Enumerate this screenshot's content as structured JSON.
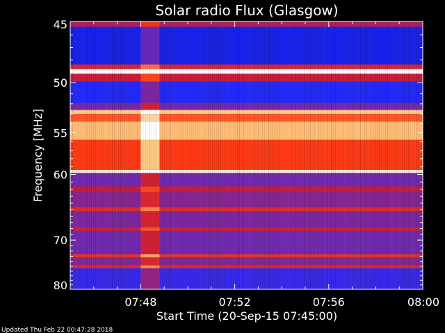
{
  "chart_data": {
    "type": "heatmap",
    "title": "Solar radio Flux (Glasgow)",
    "xlabel": "Start Time (20-Sep-15 07:45:00)",
    "ylabel": "Frequency [MHz]",
    "x_tick_labels": [
      "07:48",
      "07:52",
      "07:56",
      "08:00"
    ],
    "x_ticks_minutes": [
      3,
      7,
      11,
      15
    ],
    "xlim_minutes": [
      0,
      15
    ],
    "y_tick_labels": [
      "45",
      "50",
      "55",
      "60",
      "70",
      "80"
    ],
    "y_ticks": [
      45,
      50,
      55,
      60,
      70,
      80
    ],
    "ylim": [
      45,
      80
    ],
    "y_scale": "reciprocal",
    "colormap": [
      "#00006e",
      "#1f2aff",
      "#6e2ab4",
      "#c81e3c",
      "#ff3c14",
      "#ffc880",
      "#ffffff"
    ],
    "frequency_bands": [
      {
        "freq_range": [
          45.0,
          45.4
        ],
        "level": 0.45
      },
      {
        "freq_range": [
          45.4,
          48.4
        ],
        "level": 0.14
      },
      {
        "freq_range": [
          48.4,
          48.8
        ],
        "level": 0.55
      },
      {
        "freq_range": [
          48.8,
          49.2
        ],
        "level": 1.0
      },
      {
        "freq_range": [
          49.2,
          49.9
        ],
        "level": 0.5
      },
      {
        "freq_range": [
          49.9,
          51.9
        ],
        "level": 0.18
      },
      {
        "freq_range": [
          51.9,
          52.6
        ],
        "level": 0.35
      },
      {
        "freq_range": [
          52.6,
          53.0
        ],
        "level": 0.85
      },
      {
        "freq_range": [
          53.0,
          53.8
        ],
        "level": 0.7
      },
      {
        "freq_range": [
          53.8,
          55.8
        ],
        "level": 0.82
      },
      {
        "freq_range": [
          55.8,
          59.4
        ],
        "level": 0.66
      },
      {
        "freq_range": [
          59.4,
          59.8
        ],
        "level": 0.95
      },
      {
        "freq_range": [
          59.8,
          61.6
        ],
        "level": 0.34
      },
      {
        "freq_range": [
          61.6,
          62.4
        ],
        "level": 0.5
      },
      {
        "freq_range": [
          62.4,
          64.6
        ],
        "level": 0.38
      },
      {
        "freq_range": [
          64.6,
          65.2
        ],
        "level": 0.58
      },
      {
        "freq_range": [
          65.2,
          67.8
        ],
        "level": 0.36
      },
      {
        "freq_range": [
          67.8,
          68.4
        ],
        "level": 0.52
      },
      {
        "freq_range": [
          68.4,
          72.6
        ],
        "level": 0.34
      },
      {
        "freq_range": [
          72.6,
          73.2
        ],
        "level": 0.62
      },
      {
        "freq_range": [
          73.2,
          74.8
        ],
        "level": 0.38
      },
      {
        "freq_range": [
          74.8,
          75.4
        ],
        "level": 0.58
      },
      {
        "freq_range": [
          75.4,
          80.0
        ],
        "level": 0.22
      }
    ],
    "burst": {
      "time_range_minutes": [
        3.0,
        3.8
      ],
      "level_boost": 0.18
    }
  },
  "footer": {
    "updated": "Updated Thu Feb 22 00:47:28 2018"
  }
}
